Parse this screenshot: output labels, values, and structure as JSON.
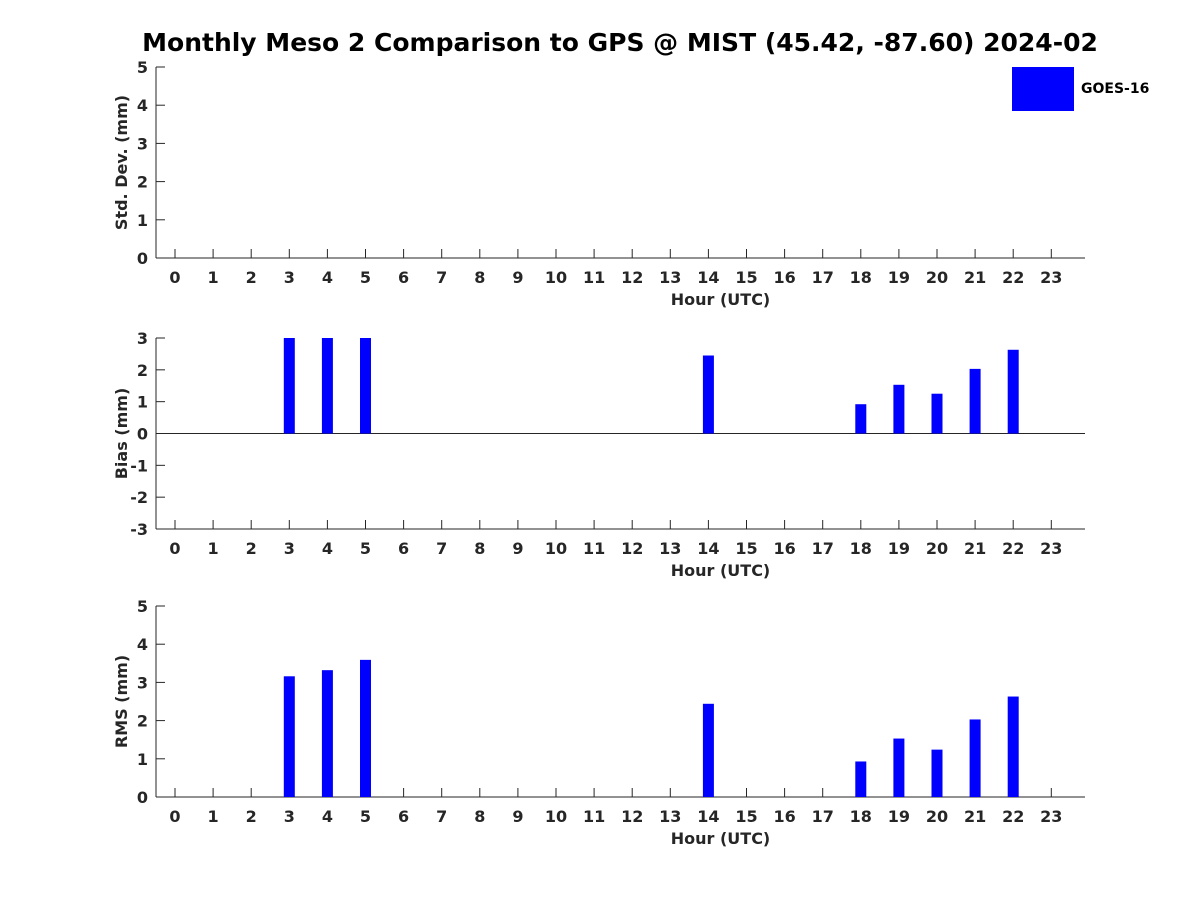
{
  "title": "Monthly Meso 2 Comparison to GPS @ MIST (45.42, -87.60) 2024-02",
  "legend": {
    "label": "GOES-16",
    "color": "#0000ff"
  },
  "chart_data": [
    {
      "type": "bar",
      "ylabel": "Std. Dev. (mm)",
      "xlabel": "Hour (UTC)",
      "ylim": [
        0,
        5
      ],
      "yticks": [
        "0",
        "1",
        "2",
        "3",
        "4",
        "5"
      ],
      "categories": [
        "0",
        "1",
        "2",
        "3",
        "4",
        "5",
        "6",
        "7",
        "8",
        "9",
        "10",
        "11",
        "12",
        "13",
        "14",
        "15",
        "16",
        "17",
        "18",
        "19",
        "20",
        "21",
        "22",
        "23"
      ],
      "series": [
        {
          "name": "GOES-16",
          "values": [
            null,
            null,
            null,
            null,
            null,
            null,
            null,
            null,
            null,
            null,
            null,
            null,
            null,
            null,
            null,
            null,
            null,
            null,
            null,
            null,
            null,
            null,
            null,
            null
          ]
        }
      ]
    },
    {
      "type": "bar",
      "ylabel": "Bias (mm)",
      "xlabel": "Hour (UTC)",
      "ylim": [
        -3,
        3
      ],
      "yticks": [
        "-3",
        "-2",
        "-1",
        "0",
        "1",
        "2",
        "3"
      ],
      "categories": [
        "0",
        "1",
        "2",
        "3",
        "4",
        "5",
        "6",
        "7",
        "8",
        "9",
        "10",
        "11",
        "12",
        "13",
        "14",
        "15",
        "16",
        "17",
        "18",
        "19",
        "20",
        "21",
        "22",
        "23"
      ],
      "series": [
        {
          "name": "GOES-16",
          "values": [
            null,
            null,
            null,
            3.0,
            3.0,
            3.0,
            null,
            null,
            null,
            null,
            null,
            null,
            null,
            null,
            2.45,
            null,
            null,
            null,
            0.92,
            1.53,
            1.25,
            2.03,
            2.63,
            null
          ]
        }
      ]
    },
    {
      "type": "bar",
      "ylabel": "RMS (mm)",
      "xlabel": "Hour (UTC)",
      "ylim": [
        0,
        5
      ],
      "yticks": [
        "0",
        "1",
        "2",
        "3",
        "4",
        "5"
      ],
      "categories": [
        "0",
        "1",
        "2",
        "3",
        "4",
        "5",
        "6",
        "7",
        "8",
        "9",
        "10",
        "11",
        "12",
        "13",
        "14",
        "15",
        "16",
        "17",
        "18",
        "19",
        "20",
        "21",
        "22",
        "23"
      ],
      "series": [
        {
          "name": "GOES-16",
          "values": [
            null,
            null,
            null,
            3.16,
            3.32,
            3.59,
            null,
            null,
            null,
            null,
            null,
            null,
            null,
            null,
            2.44,
            null,
            null,
            null,
            0.93,
            1.53,
            1.24,
            2.03,
            2.63,
            null
          ]
        }
      ]
    }
  ]
}
